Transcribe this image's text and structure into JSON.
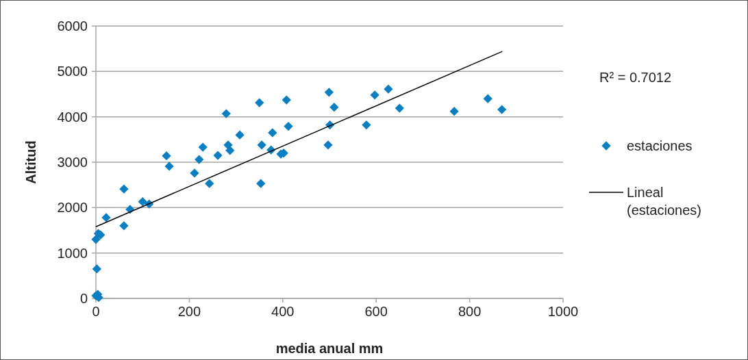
{
  "chart_data": {
    "type": "scatter",
    "xlabel": "media anual mm",
    "ylabel": "Altitud",
    "xlim": [
      0,
      1000
    ],
    "xticks": [
      0,
      200,
      400,
      600,
      800,
      1000
    ],
    "ylim": [
      0,
      6000
    ],
    "yticks": [
      0,
      1000,
      2000,
      3000,
      4000,
      5000,
      6000
    ],
    "grid": "y",
    "legend": "right",
    "marker": "diamond",
    "annotations": [
      "R² = 0.7012"
    ],
    "series": [
      {
        "name": "estaciones",
        "color": "#0a7fc4",
        "x": [
          0,
          4,
          6,
          2,
          0,
          5,
          10,
          22,
          60,
          60,
          73,
          100,
          114,
          151,
          157,
          211,
          221,
          229,
          243,
          261,
          279,
          283,
          287,
          308,
          350,
          355,
          353,
          375,
          378,
          396,
          402,
          408,
          412,
          499,
          497,
          501,
          510,
          579,
          597,
          626,
          650,
          767,
          839,
          869
        ],
        "values": [
          60,
          90,
          20,
          650,
          1300,
          1430,
          1400,
          1780,
          1600,
          2410,
          1960,
          2130,
          2080,
          3140,
          2910,
          2760,
          3060,
          3330,
          2530,
          3150,
          4070,
          3380,
          3260,
          3600,
          4310,
          3380,
          2530,
          3270,
          3650,
          3180,
          3200,
          4370,
          3790,
          4540,
          3380,
          3820,
          4210,
          3820,
          4480,
          4610,
          4190,
          4120,
          4400,
          4160
        ]
      },
      {
        "name": "Lineal (estaciones)",
        "type": "line",
        "color": "#000000",
        "marker": "none",
        "line_style": "solid",
        "x": [
          0,
          870
        ],
        "values": [
          1580,
          5440
        ]
      }
    ]
  }
}
